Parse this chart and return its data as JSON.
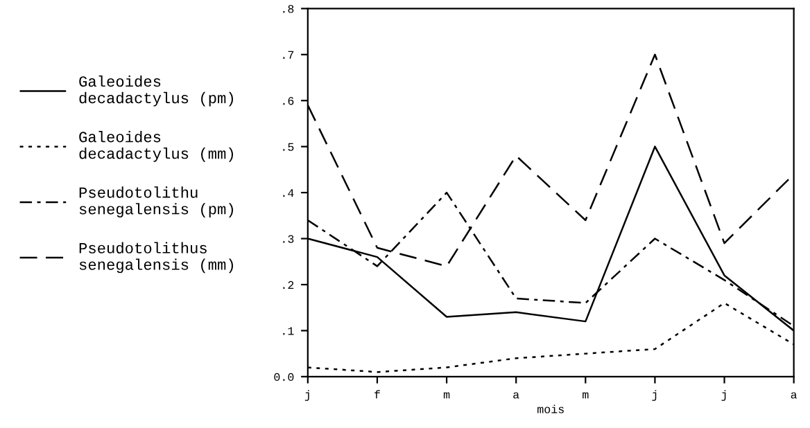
{
  "chart_data": {
    "type": "line",
    "xlabel": "mois",
    "categories": [
      "j",
      "f",
      "m",
      "a",
      "m",
      "j",
      "j",
      "a"
    ],
    "ylim": [
      0,
      0.8
    ],
    "yticks": [
      {
        "value": 0,
        "label": "0.0"
      },
      {
        "value": 0.1,
        "label": ".1"
      },
      {
        "value": 0.2,
        "label": ".2"
      },
      {
        "value": 0.3,
        "label": ".3"
      },
      {
        "value": 0.4,
        "label": ".4"
      },
      {
        "value": 0.5,
        "label": ".5"
      },
      {
        "value": 0.6,
        "label": ".6"
      },
      {
        "value": 0.7,
        "label": ".7"
      },
      {
        "value": 0.8,
        "label": ".8"
      }
    ],
    "grid": false,
    "legend": "left",
    "marker": "none",
    "series": [
      {
        "name": "Galeoides\ndecadactylus (pm)",
        "color": "#000000",
        "line_style": "solid",
        "values": [
          0.3,
          0.26,
          0.13,
          0.14,
          0.12,
          0.5,
          0.22,
          0.1
        ]
      },
      {
        "name": "Galeoides\ndecadactylus (mm)",
        "color": "#000000",
        "line_style": "dotted",
        "values": [
          0.02,
          0.01,
          0.02,
          0.04,
          0.05,
          0.06,
          0.16,
          0.07
        ]
      },
      {
        "name": "Pseudotolithu\nsenegalensis (pm)",
        "color": "#000000",
        "line_style": "dashdot",
        "values": [
          0.34,
          0.24,
          0.4,
          0.17,
          0.16,
          0.3,
          0.21,
          0.11
        ]
      },
      {
        "name": "Pseudotolithus\nsenegalensis (mm)",
        "color": "#000000",
        "line_style": "dashed",
        "values": [
          0.59,
          0.28,
          0.24,
          0.48,
          0.34,
          0.7,
          0.29,
          0.44
        ]
      }
    ]
  }
}
